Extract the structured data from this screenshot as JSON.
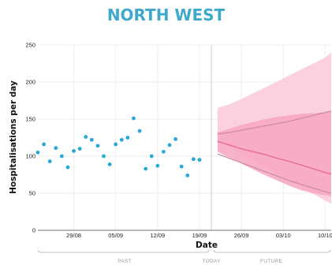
{
  "chart_data": {
    "type": "scatter",
    "title": "NORTH WEST",
    "xlabel": "Date",
    "ylabel": "Hospitalisations per day",
    "ylim": [
      0,
      250
    ],
    "yticks": [
      0,
      50,
      100,
      150,
      200,
      250
    ],
    "xticks": [
      {
        "day": 6,
        "label": "29/08"
      },
      {
        "day": 13,
        "label": "05/09"
      },
      {
        "day": 20,
        "label": "12/09"
      },
      {
        "day": 27,
        "label": "19/09"
      },
      {
        "day": 34,
        "label": "26/09"
      },
      {
        "day": 41,
        "label": "03/10"
      },
      {
        "day": 48,
        "label": "10/10"
      }
    ],
    "today_day": 29,
    "periods": [
      "PAST",
      "TODAY",
      "FUTURE"
    ],
    "observed": {
      "days": [
        0,
        1,
        2,
        3,
        4,
        5,
        6,
        7,
        8,
        9,
        10,
        11,
        12,
        13,
        14,
        15,
        16,
        17,
        18,
        19,
        20,
        21,
        22,
        23,
        24,
        25,
        26,
        27
      ],
      "values": [
        105,
        116,
        93,
        111,
        100,
        85,
        107,
        110,
        126,
        122,
        114,
        100,
        89,
        116,
        122,
        125,
        151,
        134,
        83,
        100,
        87,
        106,
        115,
        123,
        86,
        74,
        96,
        95
      ]
    },
    "forecast": {
      "days": [
        30,
        32,
        34,
        36,
        38,
        40,
        42,
        44,
        46,
        48,
        49
      ],
      "outer_upper": [
        165,
        170,
        177,
        185,
        193,
        201,
        209,
        217,
        225,
        233,
        240
      ],
      "outer_lower": [
        120,
        112,
        103,
        94,
        85,
        76,
        67,
        58,
        49,
        40,
        36
      ],
      "inner_upper": [
        132,
        137,
        142,
        146,
        150,
        153,
        155,
        157,
        158,
        159,
        160
      ],
      "inner_lower": [
        106,
        98,
        90,
        82,
        74,
        67,
        60,
        54,
        50,
        47,
        46
      ],
      "median": [
        120,
        115,
        110,
        106,
        102,
        97,
        93,
        88,
        83,
        78,
        76
      ],
      "scenario_upper": [
        130,
        132,
        135,
        138,
        141,
        144,
        147,
        151,
        155,
        159,
        161
      ],
      "scenario_lower": [
        103,
        97,
        91,
        85,
        79,
        73,
        67,
        62,
        57,
        52,
        50
      ]
    },
    "colors": {
      "title": "#3fa9cc",
      "points": "#29a8d8",
      "outer_band": "#fbd0df",
      "inner_band": "#f7a6c2",
      "median": "#e8659a",
      "scenario": "#c98aa5",
      "grid": "#eeeeee"
    },
    "grid": true
  }
}
